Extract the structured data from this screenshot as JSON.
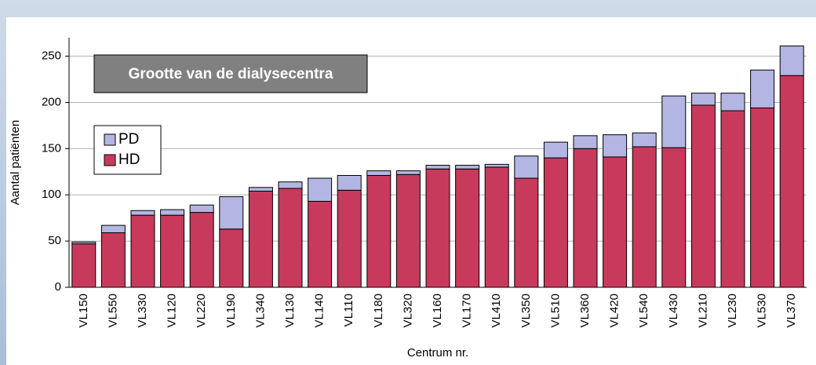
{
  "chart_data": {
    "type": "stacked_bar",
    "title": "Grootte van de dialysecentra",
    "x_label": "Centrum nr.",
    "y_label": "Aantal patiënten",
    "categories": [
      "VL150",
      "VL550",
      "VL330",
      "VL120",
      "VL220",
      "VL190",
      "VL340",
      "VL130",
      "VL140",
      "VL110",
      "VL180",
      "VL320",
      "VL160",
      "VL170",
      "VL410",
      "VL350",
      "VL510",
      "VL360",
      "VL420",
      "VL540",
      "VL430",
      "VL210",
      "VL230",
      "VL530",
      "VL370"
    ],
    "series": [
      {
        "name": "HD",
        "color": "#c83a5c",
        "values": [
          47,
          59,
          78,
          78,
          81,
          63,
          104,
          107,
          93,
          105,
          121,
          122,
          128,
          128,
          130,
          118,
          140,
          150,
          141,
          152,
          151,
          197,
          191,
          194,
          229
        ]
      },
      {
        "name": "PD",
        "color": "#b3b6e2",
        "values": [
          2,
          8,
          5,
          6,
          8,
          35,
          4,
          7,
          25,
          16,
          5,
          4,
          4,
          4,
          3,
          24,
          17,
          14,
          24,
          15,
          56,
          13,
          19,
          41,
          32
        ]
      }
    ],
    "ylim": [
      0,
      270
    ],
    "yticks": [
      0,
      50,
      100,
      150,
      200,
      250
    ],
    "grid": true,
    "legend": "upper left"
  }
}
